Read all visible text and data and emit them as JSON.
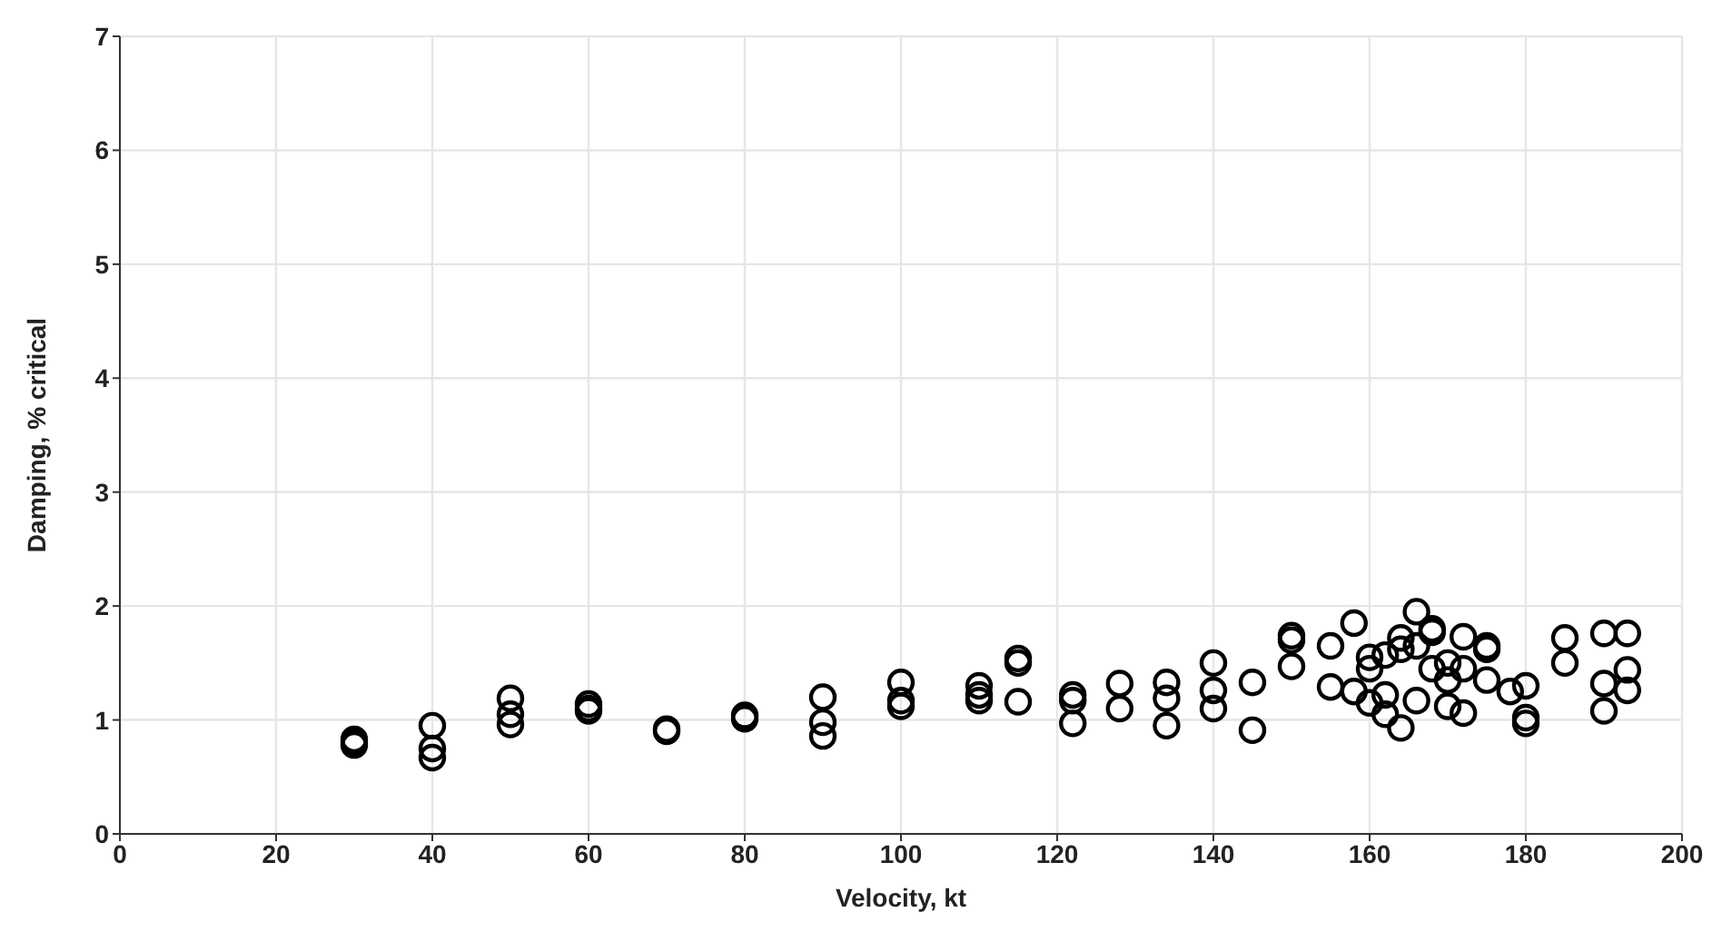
{
  "chart_data": {
    "type": "scatter",
    "xlabel": "Velocity, kt",
    "ylabel": "Damping, % critical",
    "xlim": [
      0,
      200
    ],
    "xticks": [
      0,
      20,
      40,
      60,
      80,
      100,
      120,
      140,
      160,
      180,
      200
    ],
    "ylim": [
      0,
      7
    ],
    "yticks": [
      0,
      1,
      2,
      3,
      4,
      5,
      6,
      7
    ],
    "grid": true,
    "marker": "circle",
    "series": [
      {
        "color": "#000000",
        "x": [
          30,
          30,
          30,
          40,
          40,
          40,
          50,
          50,
          50,
          60,
          60,
          60,
          70,
          70,
          80,
          80,
          90,
          90,
          90,
          100,
          100,
          100,
          110,
          110,
          110,
          115,
          115,
          115,
          122,
          122,
          122,
          128,
          128,
          134,
          134,
          134,
          140,
          140,
          140,
          145,
          145,
          150,
          150,
          150,
          155,
          155,
          158,
          158,
          160,
          160,
          160,
          162,
          162,
          162,
          164,
          164,
          164,
          166,
          166,
          166,
          168,
          168,
          168,
          170,
          170,
          170,
          172,
          172,
          172,
          175,
          175,
          175,
          178,
          180,
          180,
          180,
          185,
          185,
          190,
          190,
          190,
          193,
          193,
          193
        ],
        "values": [
          0.83,
          0.78,
          0.8,
          0.95,
          0.75,
          0.67,
          1.19,
          1.05,
          0.96,
          1.14,
          1.1,
          1.08,
          0.92,
          0.9,
          1.04,
          1.01,
          1.2,
          0.98,
          0.86,
          1.33,
          1.17,
          1.12,
          1.3,
          1.22,
          1.17,
          1.54,
          1.5,
          1.16,
          1.22,
          1.17,
          0.97,
          1.32,
          1.1,
          1.33,
          1.19,
          0.95,
          1.5,
          1.26,
          1.1,
          1.33,
          0.91,
          1.74,
          1.7,
          1.47,
          1.65,
          1.29,
          1.85,
          1.25,
          1.55,
          1.45,
          1.15,
          1.57,
          1.22,
          1.05,
          1.72,
          1.62,
          0.93,
          1.95,
          1.65,
          1.17,
          1.8,
          1.77,
          1.45,
          1.5,
          1.35,
          1.12,
          1.73,
          1.45,
          1.06,
          1.65,
          1.62,
          1.35,
          1.25,
          1.3,
          1.02,
          0.97,
          1.72,
          1.5,
          1.76,
          1.32,
          1.08,
          1.76,
          1.44,
          1.26
        ]
      }
    ]
  }
}
